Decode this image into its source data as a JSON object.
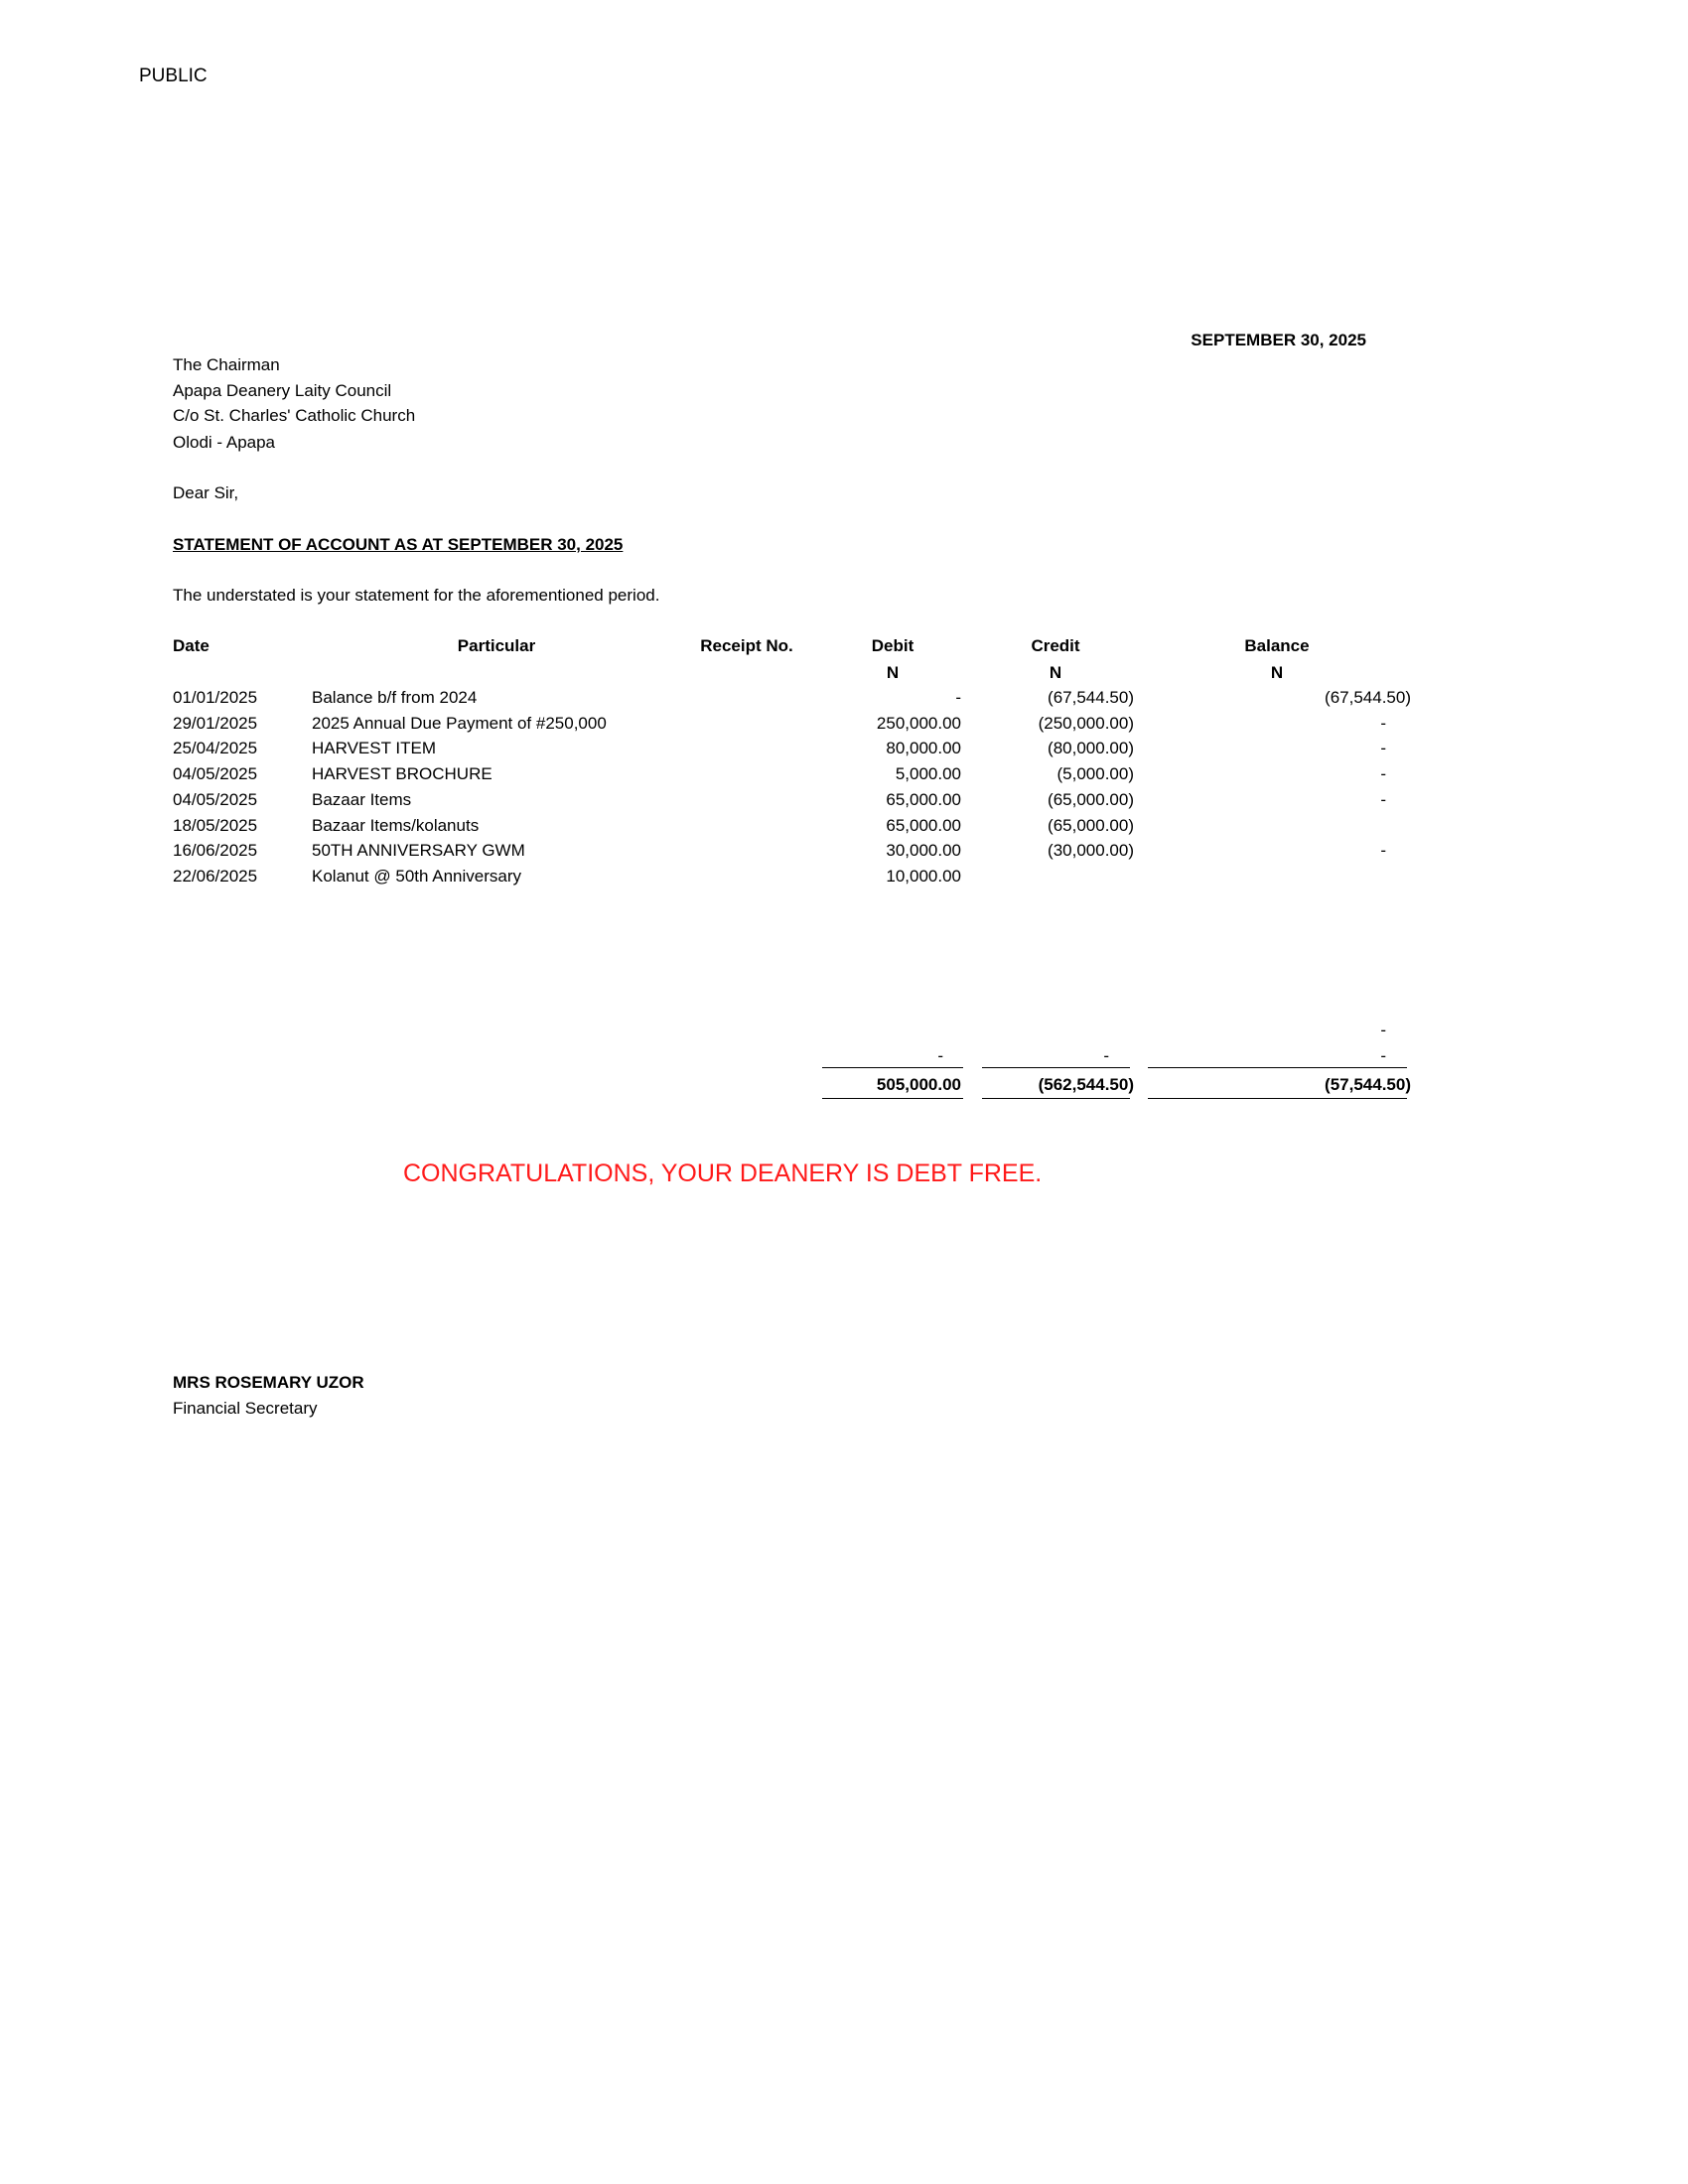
{
  "classification": "PUBLIC",
  "date": "SEPTEMBER 30, 2025",
  "address": [
    "The Chairman",
    "Apapa Deanery Laity Council",
    "C/o St. Charles' Catholic Church",
    "Olodi - Apapa"
  ],
  "salutation": "Dear Sir,",
  "subject": "STATEMENT OF ACCOUNT AS AT SEPTEMBER 30, 2025",
  "intro": "The understated is your statement for the aforementioned period.",
  "table": {
    "headers": {
      "date": "Date",
      "particular": "Particular",
      "receipt": "Receipt No.",
      "debit": "Debit",
      "credit": "Credit",
      "balance": "Balance"
    },
    "currency": {
      "debit": "N",
      "credit": "N",
      "balance": "N"
    },
    "rows": [
      {
        "date": "01/01/2025",
        "particular": "Balance b/f from 2024",
        "debit": "-",
        "credit": "(67,544.50)",
        "balance": "(67,544.50)"
      },
      {
        "date": "29/01/2025",
        "particular": "2025 Annual Due Payment of #250,000",
        "debit": "250,000.00",
        "credit": "(250,000.00)",
        "balance": "-"
      },
      {
        "date": "25/04/2025",
        "particular": "HARVEST ITEM",
        "debit": "80,000.00",
        "credit": "(80,000.00)",
        "balance": "-"
      },
      {
        "date": "04/05/2025",
        "particular": "HARVEST BROCHURE",
        "debit": "5,000.00",
        "credit": "(5,000.00)",
        "balance": "-"
      },
      {
        "date": "04/05/2025",
        "particular": "Bazaar Items",
        "debit": "65,000.00",
        "credit": "(65,000.00)",
        "balance": "-"
      },
      {
        "date": "18/05/2025",
        "particular": "Bazaar Items/kolanuts",
        "debit": "65,000.00",
        "credit": "(65,000.00)",
        "balance": ""
      },
      {
        "date": "16/06/2025",
        "particular": "50TH ANNIVERSARY GWM",
        "debit": "30,000.00",
        "credit": "(30,000.00)",
        "balance": "-"
      },
      {
        "date": "22/06/2025",
        "particular": "Kolanut @ 50th Anniversary",
        "debit": "10,000.00",
        "credit": "",
        "balance": ""
      }
    ],
    "extra_balance_dash": "-",
    "subtotal": {
      "debit": "-",
      "credit": "-",
      "balance": "-"
    },
    "total": {
      "debit": "505,000.00",
      "credit": "(562,544.50)",
      "balance": "(57,544.50)"
    }
  },
  "congratulations": "CONGRATULATIONS, YOUR DEANERY IS DEBT FREE.",
  "congratulations_color": "#ff1a1a",
  "signatory": {
    "name": "MRS ROSEMARY UZOR",
    "title": "Financial Secretary"
  }
}
